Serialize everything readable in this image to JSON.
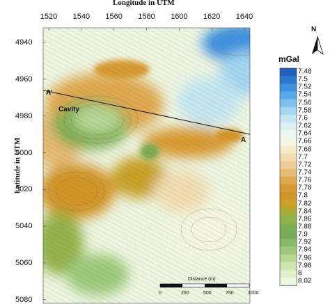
{
  "figure": {
    "top_title": "Longitude in UTM",
    "left_title": "Latitude in UTM",
    "unit": "mGal",
    "north_letter": "N"
  },
  "axes": {
    "x_ticks": [
      "1520",
      "1540",
      "1560",
      "1580",
      "1600",
      "1620",
      "1640"
    ],
    "y_ticks": [
      "4940",
      "4960",
      "4980",
      "5000",
      "5020",
      "5040",
      "5060",
      "5080"
    ],
    "x_range": [
      1520,
      1640
    ],
    "y_range": [
      4932,
      5082
    ]
  },
  "colorbar": {
    "labels": [
      "7.48",
      "7.5",
      "7.52",
      "7.54",
      "7.56",
      "7.58",
      "7.6",
      "7.62",
      "7.64",
      "7.66",
      "7.68",
      "7.7",
      "7.72",
      "7.74",
      "7.76",
      "7.78",
      "7.8",
      "7.82",
      "7.84",
      "7.86",
      "7.88",
      "7.9",
      "7.92",
      "7.94",
      "7.96",
      "7.98",
      "8",
      "8.02"
    ],
    "colors": [
      "#1e5fbf",
      "#2b78d2",
      "#3d91e0",
      "#5aa9e8",
      "#7fc1ee",
      "#a3d6f1",
      "#c4e6f3",
      "#dcf1f3",
      "#ecf7ef",
      "#f5f7e2",
      "#f5ecca",
      "#f2ddb0",
      "#eccd95",
      "#e6ba72",
      "#e0a84f",
      "#d89a32",
      "#d39427",
      "#c8a126",
      "#a9ad36",
      "#93b24a",
      "#7fae52",
      "#76ab59",
      "#86b96a",
      "#9ec97c",
      "#b7d895",
      "#cde5ae",
      "#e0f0c8",
      "#eef7df"
    ]
  },
  "profile": {
    "start_label": "A'",
    "end_label": "A",
    "start": [
      1520,
      4966
    ],
    "end": [
      1640,
      4990
    ]
  },
  "features": {
    "cavity_label": "Cavity"
  },
  "scale_bar": {
    "title": "Distance (m)",
    "labels": [
      "0",
      "250",
      "500",
      "750",
      "1000"
    ]
  }
}
